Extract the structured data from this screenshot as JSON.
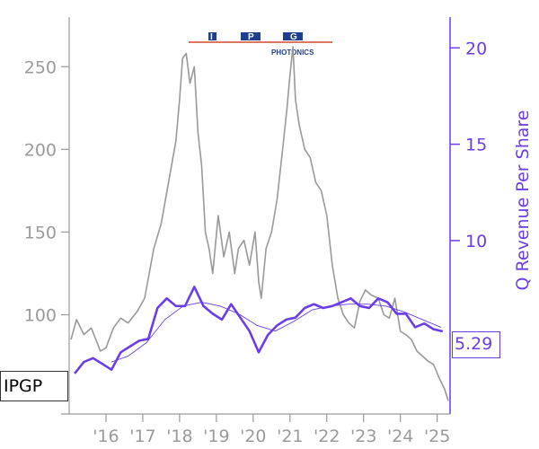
{
  "ticker": "IPGP",
  "logo": {
    "letters": [
      "I",
      "P",
      "G"
    ],
    "subtitle": "PHOTONICS"
  },
  "colors": {
    "price": "#999999",
    "revenue": "#6a3de8",
    "revenue_trend": "#6a3de8",
    "axis_left": "#9a9a9a",
    "axis_right": "#6a3de8",
    "logo_blue": "#1f3e8e",
    "logo_red": "#d04a2a"
  },
  "last_value_label": "5.29",
  "chart_data": {
    "type": "line",
    "xlabel": "",
    "ylabel_left": "",
    "ylabel_right": "Q Revenue Per Share",
    "x_ticks": [
      "'16",
      "'17",
      "'18",
      "'19",
      "'20",
      "'21",
      "'22",
      "'23",
      "'24",
      "'25"
    ],
    "xlim": [
      2015.0,
      2025.35
    ],
    "y_left": {
      "ticks": [
        100,
        150,
        200,
        250
      ],
      "ylim": [
        40,
        280
      ]
    },
    "y_right": {
      "ticks": [
        10,
        15,
        20
      ],
      "ylim": [
        1,
        21.6
      ]
    },
    "series": [
      {
        "axis": "left",
        "style": "price",
        "x": [
          2015.05,
          2015.2,
          2015.4,
          2015.6,
          2015.85,
          2016.0,
          2016.2,
          2016.4,
          2016.6,
          2016.85,
          2017.05,
          2017.3,
          2017.5,
          2017.7,
          2017.9,
          2018.0,
          2018.08,
          2018.18,
          2018.28,
          2018.4,
          2018.5,
          2018.6,
          2018.7,
          2018.8,
          2018.9,
          2019.05,
          2019.2,
          2019.35,
          2019.5,
          2019.6,
          2019.75,
          2019.9,
          2020.05,
          2020.15,
          2020.22,
          2020.35,
          2020.5,
          2020.65,
          2020.8,
          2020.92,
          2021.0,
          2021.08,
          2021.15,
          2021.25,
          2021.4,
          2021.55,
          2021.7,
          2021.85,
          2022.0,
          2022.15,
          2022.3,
          2022.45,
          2022.6,
          2022.75,
          2022.9,
          2023.05,
          2023.2,
          2023.4,
          2023.55,
          2023.7,
          2023.85,
          2024.0,
          2024.15,
          2024.3,
          2024.45,
          2024.6,
          2024.75,
          2024.9,
          2025.05,
          2025.2,
          2025.3
        ],
        "values": [
          85,
          97,
          88,
          92,
          78,
          80,
          92,
          98,
          95,
          102,
          110,
          140,
          155,
          180,
          205,
          230,
          255,
          258,
          240,
          250,
          210,
          190,
          150,
          140,
          125,
          160,
          135,
          150,
          125,
          140,
          145,
          130,
          150,
          120,
          110,
          140,
          150,
          170,
          200,
          225,
          245,
          262,
          230,
          215,
          200,
          195,
          180,
          175,
          160,
          130,
          110,
          100,
          95,
          92,
          108,
          115,
          112,
          110,
          100,
          98,
          110,
          90,
          88,
          85,
          78,
          75,
          72,
          70,
          62,
          55,
          48
        ]
      },
      {
        "axis": "right",
        "style": "revenue",
        "x": [
          2015.15,
          2015.4,
          2015.65,
          2015.9,
          2016.15,
          2016.4,
          2016.65,
          2016.9,
          2017.15,
          2017.4,
          2017.65,
          2017.9,
          2018.15,
          2018.4,
          2018.65,
          2018.9,
          2019.15,
          2019.4,
          2019.65,
          2019.9,
          2020.15,
          2020.4,
          2020.65,
          2020.9,
          2021.15,
          2021.4,
          2021.65,
          2021.9,
          2022.15,
          2022.4,
          2022.65,
          2022.9,
          2023.15,
          2023.4,
          2023.65,
          2023.9,
          2024.15,
          2024.4,
          2024.65,
          2024.9,
          2025.15
        ],
        "values": [
          3.1,
          3.7,
          3.9,
          3.6,
          3.3,
          4.2,
          4.5,
          4.8,
          4.9,
          6.5,
          7.0,
          6.6,
          6.6,
          7.6,
          6.6,
          6.2,
          5.9,
          6.7,
          6.0,
          5.3,
          4.2,
          5.1,
          5.6,
          5.9,
          6.0,
          6.5,
          6.7,
          6.5,
          6.6,
          6.8,
          7.0,
          6.6,
          6.5,
          7.0,
          6.8,
          6.2,
          6.2,
          5.5,
          5.7,
          5.4,
          5.29
        ]
      },
      {
        "axis": "right",
        "style": "revenue_trend",
        "x": [
          2016.15,
          2016.6,
          2017.1,
          2017.6,
          2018.1,
          2018.6,
          2019.1,
          2019.6,
          2020.1,
          2020.6,
          2021.1,
          2021.6,
          2022.1,
          2022.6,
          2023.1,
          2023.6,
          2024.1,
          2024.6,
          2025.1
        ],
        "values": [
          3.7,
          4.0,
          4.7,
          5.9,
          6.6,
          6.8,
          6.6,
          6.2,
          5.6,
          5.3,
          5.8,
          6.4,
          6.6,
          6.7,
          6.7,
          6.6,
          6.3,
          5.9,
          5.5
        ]
      }
    ]
  }
}
